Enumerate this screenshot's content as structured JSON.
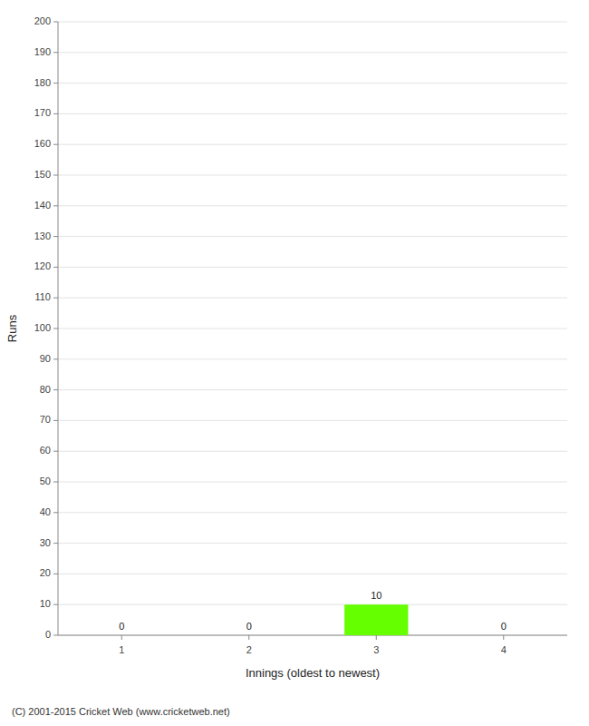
{
  "chart_data": {
    "type": "bar",
    "xlabel": "Innings (oldest to newest)",
    "ylabel": "Runs",
    "categories": [
      1,
      2,
      3,
      4
    ],
    "values": [
      0,
      0,
      10,
      0
    ],
    "color": "#66ff00",
    "ylim": [
      0,
      200
    ],
    "yticks": [
      0,
      10,
      20,
      30,
      40,
      50,
      60,
      70,
      80,
      90,
      100,
      110,
      120,
      130,
      140,
      150,
      160,
      170,
      180,
      190,
      200
    ],
    "grid": true,
    "data_labels": true,
    "footer": "(C) 2001-2015 Cricket Web (www.cricketweb.net)"
  }
}
